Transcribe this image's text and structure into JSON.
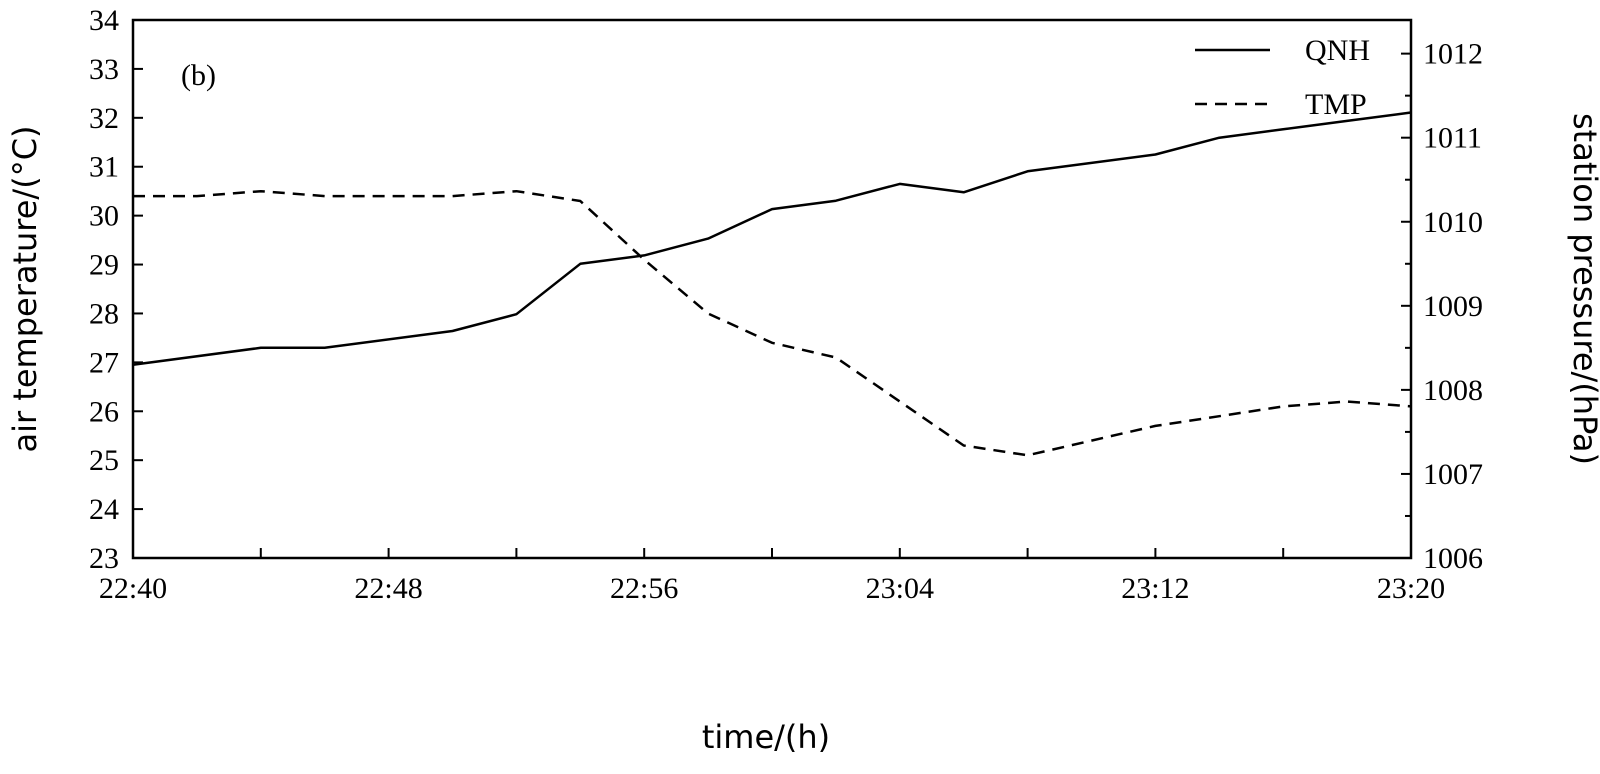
{
  "chart_data": {
    "type": "line",
    "panel_label": "(b)",
    "xlabel": "time/(h)",
    "ylabel_left": "air temperature/(°C)",
    "ylabel_right": "station pressure/(hPa)",
    "x_ticks": [
      "22:40",
      "22:48",
      "22:56",
      "23:04",
      "23:12",
      "23:20"
    ],
    "x_minor_ticks": [
      "22:44",
      "22:52",
      "23:00",
      "23:08",
      "23:16"
    ],
    "xlim": [
      "22:40",
      "23:20"
    ],
    "y_left_ticks": [
      "23",
      "24",
      "25",
      "26",
      "27",
      "28",
      "29",
      "30",
      "31",
      "32",
      "33",
      "34"
    ],
    "ylim_left": [
      23,
      34
    ],
    "y_right_ticks": [
      "1006",
      "1007",
      "1008",
      "1009",
      "1010",
      "1011",
      "1012"
    ],
    "ylim_right": [
      1006,
      1012.4
    ],
    "legend_position": "top-right",
    "grid": false,
    "series": [
      {
        "name": "QNH",
        "axis": "right",
        "style": "solid",
        "color": "#000000",
        "x": [
          "22:40",
          "22:44",
          "22:46",
          "22:50",
          "22:52",
          "22:54",
          "22:56",
          "22:58",
          "23:00",
          "23:02",
          "23:04",
          "23:06",
          "23:08",
          "23:12",
          "23:14",
          "23:16",
          "23:18",
          "23:20"
        ],
        "y": [
          1008.3,
          1008.5,
          1008.5,
          1008.7,
          1008.9,
          1009.5,
          1009.6,
          1009.8,
          1010.15,
          1010.25,
          1010.45,
          1010.35,
          1010.6,
          1010.8,
          1011.0,
          1011.1,
          1011.2,
          1011.3
        ]
      },
      {
        "name": "TMP",
        "axis": "left",
        "style": "dashed",
        "color": "#000000",
        "x": [
          "22:40",
          "22:42",
          "22:44",
          "22:46",
          "22:50",
          "22:52",
          "22:54",
          "22:56",
          "22:58",
          "23:00",
          "23:02",
          "23:04",
          "23:06",
          "23:08",
          "23:10",
          "23:12",
          "23:14",
          "23:16",
          "23:18",
          "23:20"
        ],
        "y": [
          30.4,
          30.4,
          30.5,
          30.4,
          30.4,
          30.5,
          30.3,
          29.1,
          28.0,
          27.4,
          27.1,
          26.2,
          25.3,
          25.1,
          25.4,
          25.7,
          25.9,
          26.1,
          26.2,
          26.1
        ]
      }
    ]
  }
}
